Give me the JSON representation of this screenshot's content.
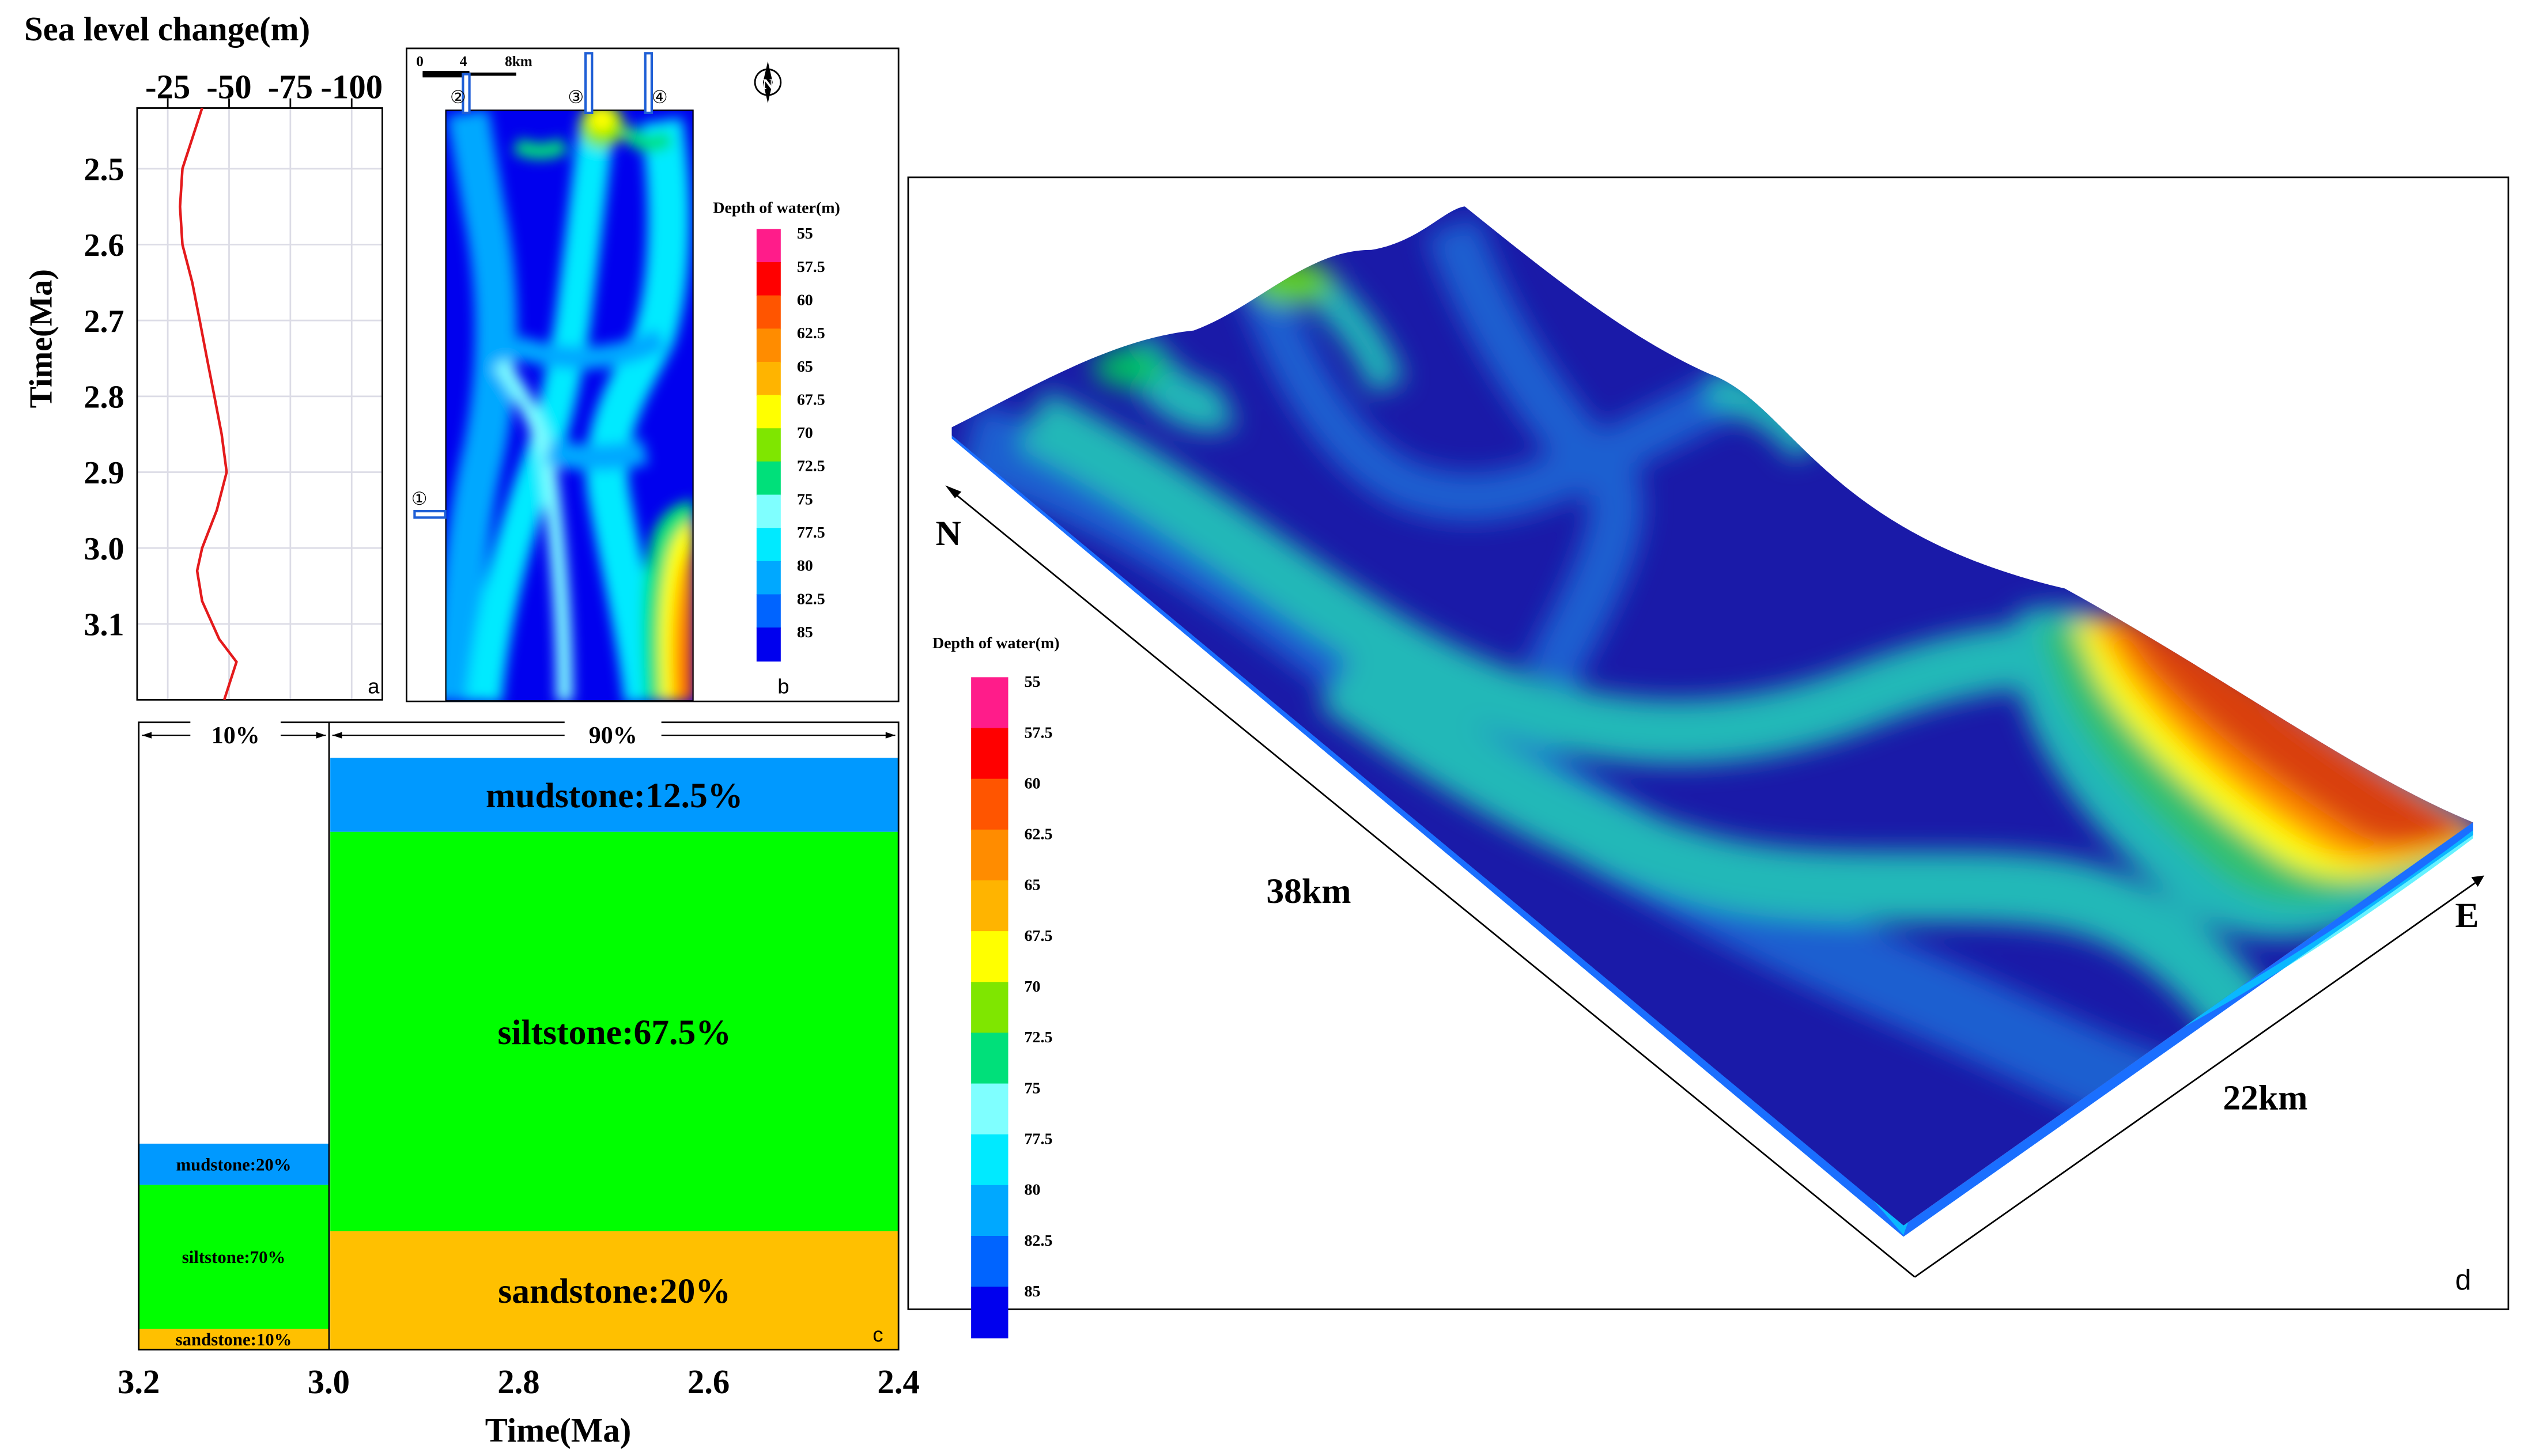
{
  "chart_data": [
    {
      "panel": "a",
      "type": "line",
      "title": "Sea level change(m)",
      "xlabel": "",
      "ylabel": "Time(Ma)",
      "x_ticks": [
        "-25",
        "-50",
        "-75",
        "-100"
      ],
      "y_ticks": [
        "2.5",
        "2.6",
        "2.7",
        "2.8",
        "2.9",
        "3.0",
        "3.1"
      ],
      "xlim": [
        -12.5,
        -112.5
      ],
      "ylim": [
        2.42,
        3.2
      ],
      "grid": true,
      "color": "#e41a1c",
      "series": [
        {
          "x": [
            -39,
            -31,
            -30,
            -31,
            -35,
            -38,
            -41,
            -44,
            -47,
            -49,
            -45,
            -39,
            -37,
            -39,
            -46,
            -53,
            -48
          ],
          "y": [
            2.42,
            2.5,
            2.55,
            2.6,
            2.65,
            2.7,
            2.75,
            2.8,
            2.85,
            2.9,
            2.95,
            3.0,
            3.03,
            3.07,
            3.12,
            3.15,
            3.2
          ]
        }
      ]
    },
    {
      "panel": "b",
      "type": "heatmap",
      "title": "",
      "legend_title": "Depth of water(m)",
      "legend_values": [
        "55",
        "57.5",
        "60",
        "62.5",
        "65",
        "67.5",
        "70",
        "72.5",
        "75",
        "77.5",
        "80",
        "82.5",
        "85"
      ],
      "legend_colors": [
        "#ff1c8a",
        "#ff0000",
        "#ff5500",
        "#ff8c00",
        "#ffb400",
        "#ffff00",
        "#7fe600",
        "#00e07a",
        "#7fffff",
        "#00eaff",
        "#00a8ff",
        "#0064ff",
        "#0000ee"
      ],
      "scale_labels": [
        "0",
        "4",
        "8km"
      ],
      "inflow_labels": [
        "①",
        "②",
        "③",
        "④"
      ],
      "north_label": "N"
    },
    {
      "panel": "c",
      "type": "bar",
      "xlabel": "Time(Ma)",
      "x_ticks": [
        "3.2",
        "3.0",
        "2.8",
        "2.6",
        "2.4"
      ],
      "xlim": [
        3.2,
        2.4
      ],
      "periods": [
        {
          "range": [
            3.2,
            3.0
          ],
          "percent_label": "10%",
          "relative_height": 0.348,
          "layers": [
            {
              "label": "sandstone:10%",
              "value": 10,
              "color": "#ffc000"
            },
            {
              "label": "siltstone:70%",
              "value": 70,
              "color": "#00ff00"
            },
            {
              "label": "mudstone:20%",
              "value": 20,
              "color": "#0099ff"
            }
          ]
        },
        {
          "range": [
            3.0,
            2.4
          ],
          "percent_label": "90%",
          "relative_height": 1.0,
          "layers": [
            {
              "label": "sandstone:20%",
              "value": 20,
              "color": "#ffc000"
            },
            {
              "label": "siltstone:67.5%",
              "value": 67.5,
              "color": "#00ff00"
            },
            {
              "label": "mudstone:12.5%",
              "value": 12.5,
              "color": "#0099ff"
            }
          ]
        }
      ]
    },
    {
      "panel": "d",
      "type": "heatmap",
      "title": "",
      "legend_title": "Depth of water(m)",
      "legend_values": [
        "55",
        "57.5",
        "60",
        "62.5",
        "65",
        "67.5",
        "70",
        "72.5",
        "75",
        "77.5",
        "80",
        "82.5",
        "85"
      ],
      "legend_colors": [
        "#ff1c8a",
        "#ff0000",
        "#ff5500",
        "#ff8c00",
        "#ffb400",
        "#ffff00",
        "#7fe600",
        "#00e07a",
        "#7fffff",
        "#00eaff",
        "#00a8ff",
        "#0064ff",
        "#0000ee"
      ],
      "axis_labels": [
        "N",
        "E"
      ],
      "dimension_labels": [
        "38km",
        "22km"
      ]
    }
  ],
  "panel_letters": [
    "a",
    "b",
    "c",
    "d"
  ]
}
